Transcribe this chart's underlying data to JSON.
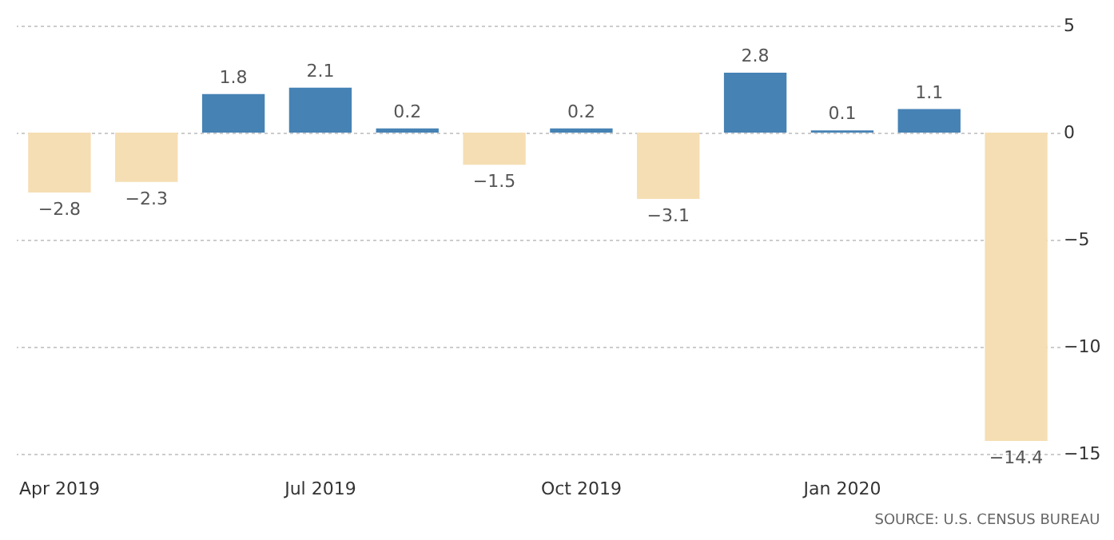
{
  "chart_data": {
    "type": "bar",
    "categories": [
      "Apr 2019",
      null,
      null,
      "Jul 2019",
      null,
      null,
      "Oct 2019",
      null,
      null,
      "Jan 2020",
      null,
      null
    ],
    "values": [
      -2.8,
      -2.3,
      1.8,
      2.1,
      0.2,
      -1.5,
      0.2,
      -3.1,
      2.8,
      0.1,
      1.1,
      -14.4
    ],
    "colors": [
      "#f5deb3",
      "#f5deb3",
      "#4682b4",
      "#4682b4",
      "#4682b4",
      "#f5deb3",
      "#4682b4",
      "#f5deb3",
      "#4682b4",
      "#4682b4",
      "#4682b4",
      "#f5deb3"
    ],
    "ylim": [
      -15,
      5
    ],
    "yticks": [
      -15,
      -10,
      -5,
      0,
      5
    ],
    "grid": "y",
    "data_labels": true,
    "annotations": [
      "SOURCE: U.S. CENSUS BUREAU"
    ]
  }
}
